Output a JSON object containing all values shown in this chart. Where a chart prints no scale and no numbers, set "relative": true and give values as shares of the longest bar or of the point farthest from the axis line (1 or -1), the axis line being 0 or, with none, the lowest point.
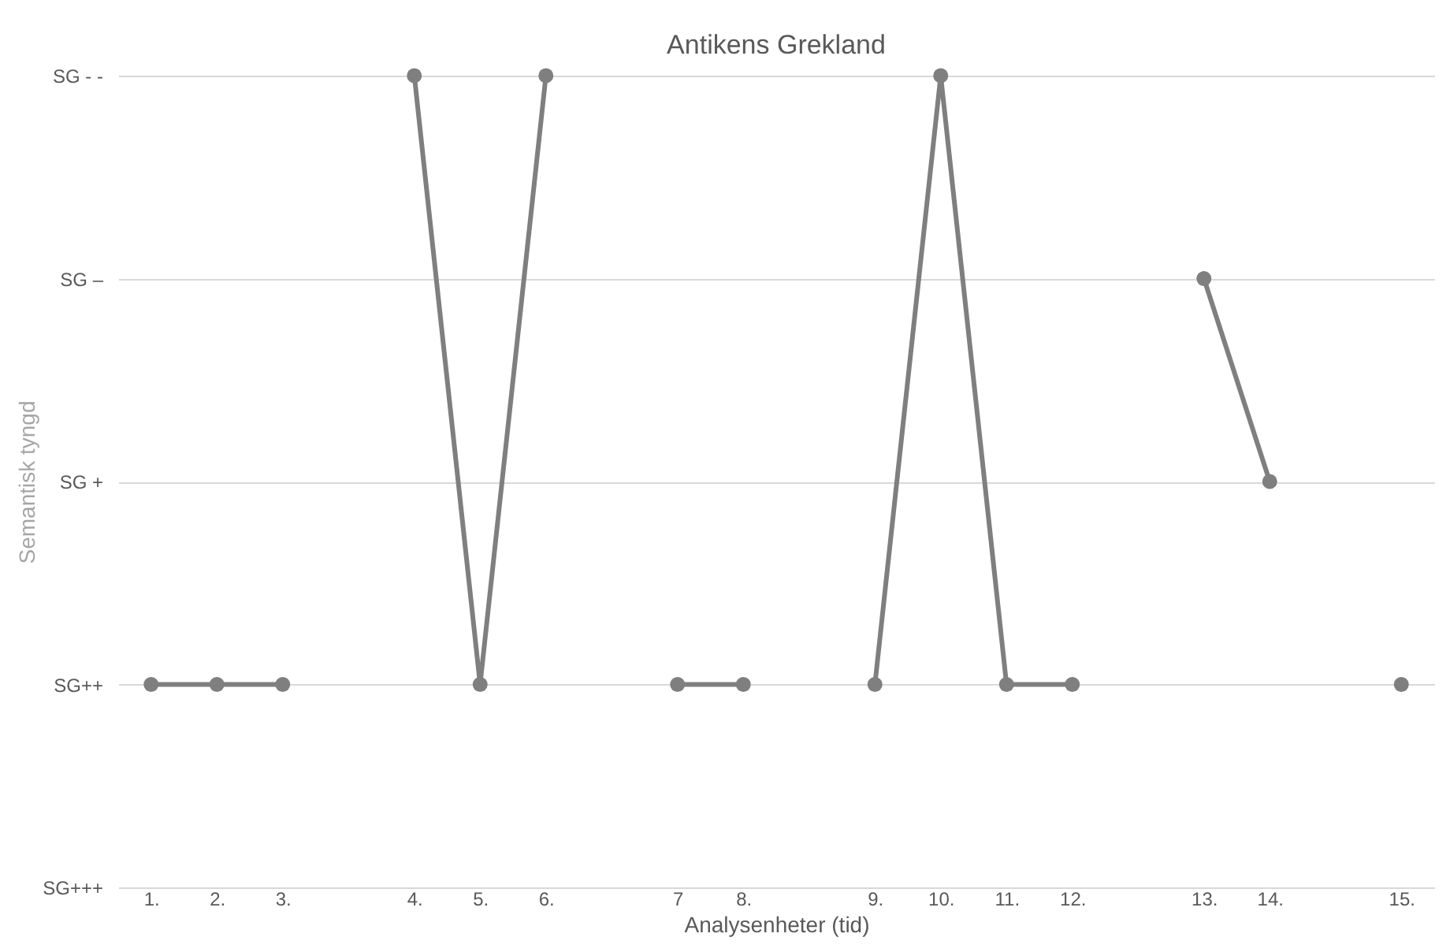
{
  "chart_data": {
    "type": "line",
    "title": "Antikens Grekland",
    "xlabel": "Analysenheter (tid)",
    "ylabel": "Semantisk tyngd",
    "categories": [
      "1.",
      "2.",
      "3.",
      null,
      "4.",
      "5.",
      "6.",
      null,
      "7",
      "8.",
      null,
      "9.",
      "10.",
      "11.",
      "12.",
      null,
      "13.",
      "14.",
      null,
      "15."
    ],
    "y_categories": [
      "SG - -",
      "SG –",
      "SG +",
      "SG++",
      "SG+++"
    ],
    "relative": true,
    "series": [
      {
        "color": "#7f7f7f",
        "values": [
          0.25,
          0.25,
          0.25,
          null,
          1,
          0.25,
          1,
          null,
          0.25,
          0.25,
          null,
          0.25,
          1,
          0.25,
          0.25,
          null,
          0.75,
          0.5,
          null,
          0.25
        ]
      }
    ],
    "grid": "y",
    "marker": "circle",
    "line_style": "solid"
  }
}
